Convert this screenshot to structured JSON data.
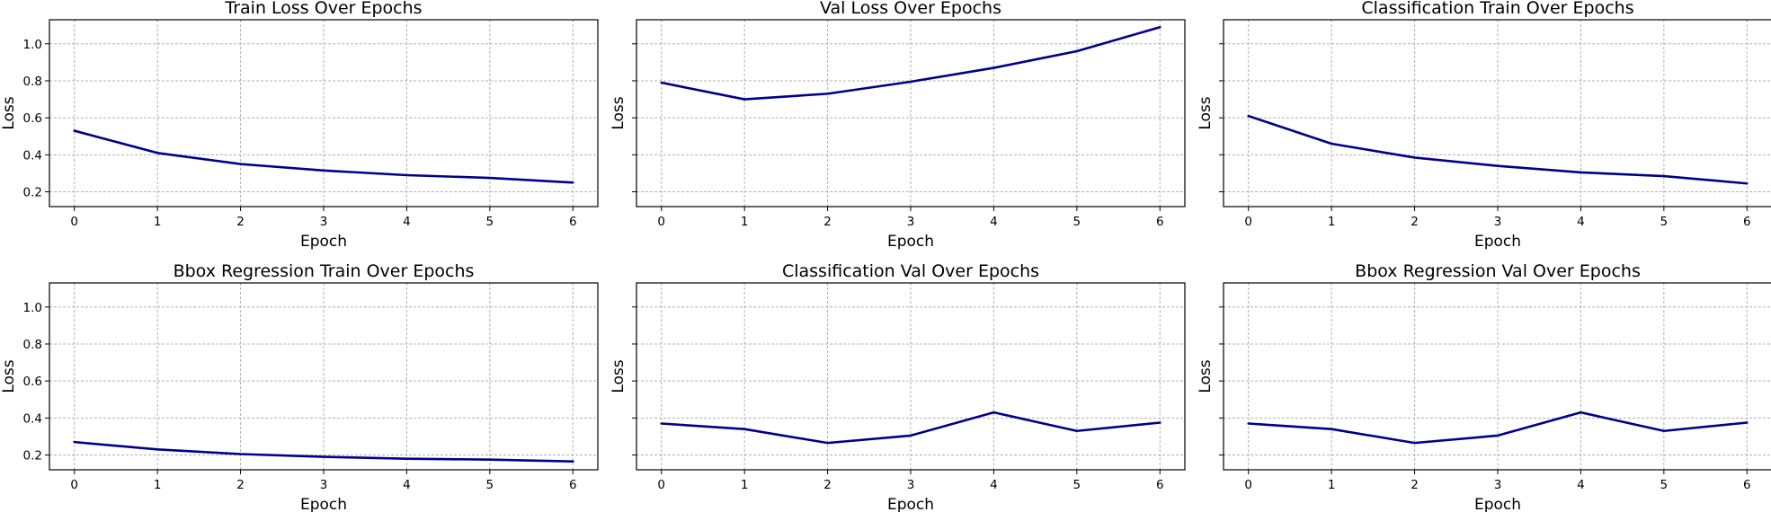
{
  "chart_data": [
    {
      "type": "line",
      "title": "Train Loss Over Epochs",
      "xlabel": "Epoch",
      "ylabel": "Loss",
      "x": [
        0,
        1,
        2,
        3,
        4,
        5,
        6
      ],
      "series": [
        {
          "values": [
            0.53,
            0.41,
            0.35,
            0.315,
            0.29,
            0.275,
            0.25
          ]
        }
      ],
      "xticks": [
        "0",
        "1",
        "2",
        "3",
        "4",
        "5",
        "6"
      ],
      "yticks": [
        "0.2",
        "0.4",
        "0.6",
        "0.8",
        "1.0"
      ],
      "xlim": [
        -0.3,
        6.3
      ],
      "ylim": [
        0.12,
        1.13
      ],
      "grid": true,
      "show_ytick_labels": true,
      "color": "#00008b"
    },
    {
      "type": "line",
      "title": "Val Loss Over Epochs",
      "xlabel": "Epoch",
      "ylabel": "Loss",
      "x": [
        0,
        1,
        2,
        3,
        4,
        5,
        6
      ],
      "series": [
        {
          "values": [
            0.79,
            0.7,
            0.73,
            0.795,
            0.87,
            0.96,
            1.09
          ]
        }
      ],
      "xticks": [
        "0",
        "1",
        "2",
        "3",
        "4",
        "5",
        "6"
      ],
      "yticks": [
        "0.2",
        "0.4",
        "0.6",
        "0.8",
        "1.0"
      ],
      "xlim": [
        -0.3,
        6.3
      ],
      "ylim": [
        0.12,
        1.13
      ],
      "grid": true,
      "show_ytick_labels": false,
      "color": "#00008b"
    },
    {
      "type": "line",
      "title": "Classification Train Over Epochs",
      "xlabel": "Epoch",
      "ylabel": "Loss",
      "x": [
        0,
        1,
        2,
        3,
        4,
        5,
        6
      ],
      "series": [
        {
          "values": [
            0.61,
            0.46,
            0.385,
            0.34,
            0.305,
            0.285,
            0.245
          ]
        }
      ],
      "xticks": [
        "0",
        "1",
        "2",
        "3",
        "4",
        "5",
        "6"
      ],
      "yticks": [
        "0.2",
        "0.4",
        "0.6",
        "0.8",
        "1.0"
      ],
      "xlim": [
        -0.3,
        6.3
      ],
      "ylim": [
        0.12,
        1.13
      ],
      "grid": true,
      "show_ytick_labels": false,
      "color": "#00008b"
    },
    {
      "type": "line",
      "title": "Bbox Regression Train Over Epochs",
      "xlabel": "Epoch",
      "ylabel": "Loss",
      "x": [
        0,
        1,
        2,
        3,
        4,
        5,
        6
      ],
      "series": [
        {
          "values": [
            0.27,
            0.23,
            0.205,
            0.19,
            0.18,
            0.175,
            0.165
          ]
        }
      ],
      "xticks": [
        "0",
        "1",
        "2",
        "3",
        "4",
        "5",
        "6"
      ],
      "yticks": [
        "0.2",
        "0.4",
        "0.6",
        "0.8",
        "1.0"
      ],
      "xlim": [
        -0.3,
        6.3
      ],
      "ylim": [
        0.12,
        1.13
      ],
      "grid": true,
      "show_ytick_labels": true,
      "color": "#00008b"
    },
    {
      "type": "line",
      "title": "Classification Val Over Epochs",
      "xlabel": "Epoch",
      "ylabel": "Loss",
      "x": [
        0,
        1,
        2,
        3,
        4,
        5,
        6
      ],
      "series": [
        {
          "values": [
            0.37,
            0.34,
            0.265,
            0.305,
            0.43,
            0.33,
            0.375
          ]
        }
      ],
      "xticks": [
        "0",
        "1",
        "2",
        "3",
        "4",
        "5",
        "6"
      ],
      "yticks": [
        "0.2",
        "0.4",
        "0.6",
        "0.8",
        "1.0"
      ],
      "xlim": [
        -0.3,
        6.3
      ],
      "ylim": [
        0.12,
        1.13
      ],
      "grid": true,
      "show_ytick_labels": false,
      "color": "#00008b"
    },
    {
      "type": "line",
      "title": "Bbox Regression Val Over Epochs",
      "xlabel": "Epoch",
      "ylabel": "Loss",
      "x": [
        0,
        1,
        2,
        3,
        4,
        5,
        6
      ],
      "series": [
        {
          "values": [
            0.37,
            0.34,
            0.265,
            0.305,
            0.43,
            0.33,
            0.375
          ]
        }
      ],
      "xticks": [
        "0",
        "1",
        "2",
        "3",
        "4",
        "5",
        "6"
      ],
      "yticks": [
        "0.2",
        "0.4",
        "0.6",
        "0.8",
        "1.0"
      ],
      "xlim": [
        -0.3,
        6.3
      ],
      "ylim": [
        0.12,
        1.13
      ],
      "grid": true,
      "show_ytick_labels": false,
      "color": "#00008b"
    }
  ]
}
